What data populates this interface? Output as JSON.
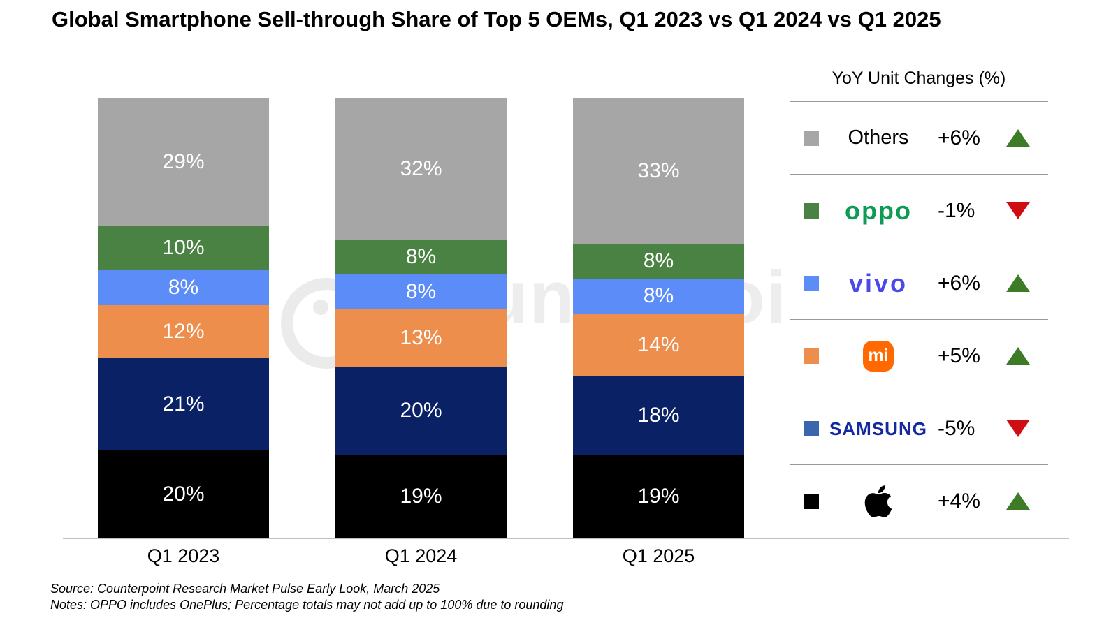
{
  "title": "Global Smartphone Sell-through Share of Top 5 OEMs, Q1 2023 vs Q1 2024 vs Q1 2025",
  "watermark": {
    "text": "Counterpoint"
  },
  "chart_data": {
    "type": "bar",
    "stacked": true,
    "title": "Global Smartphone Sell-through Share of Top 5 OEMs, Q1 2023 vs Q1 2024 vs Q1 2025",
    "categories": [
      "Q1 2023",
      "Q1 2024",
      "Q1 2025"
    ],
    "series": [
      {
        "name": "Apple",
        "color": "#000000",
        "values": [
          20,
          19,
          19
        ]
      },
      {
        "name": "Samsung",
        "color": "#0a2166",
        "values": [
          21,
          20,
          18
        ]
      },
      {
        "name": "Xiaomi",
        "color": "#ed8e4d",
        "values": [
          12,
          13,
          14
        ]
      },
      {
        "name": "vivo",
        "color": "#5b8cf7",
        "values": [
          8,
          8,
          8
        ]
      },
      {
        "name": "OPPO",
        "color": "#4a8243",
        "values": [
          10,
          8,
          8
        ]
      },
      {
        "name": "Others",
        "color": "#a6a6a6",
        "values": [
          29,
          32,
          33
        ]
      }
    ],
    "value_suffix": "%",
    "ylim": [
      0,
      100
    ],
    "grid": false,
    "legend_position": "right"
  },
  "legend": {
    "title": "YoY Unit Changes (%)",
    "up_color": "#3e7b27",
    "down_color": "#ce0e12",
    "rows": [
      {
        "brand": "Others",
        "logo": "text",
        "swatch": "#a6a6a6",
        "change": "+6%",
        "direction": "up"
      },
      {
        "brand": "OPPO",
        "logo": "oppo",
        "swatch": "#4a8243",
        "change": "-1%",
        "direction": "down"
      },
      {
        "brand": "vivo",
        "logo": "vivo",
        "swatch": "#5b8cf7",
        "change": "+6%",
        "direction": "up"
      },
      {
        "brand": "Xiaomi",
        "logo": "xiaomi",
        "swatch": "#ed8e4d",
        "change": "+5%",
        "direction": "up",
        "badge_text": "mi"
      },
      {
        "brand": "Samsung",
        "logo": "samsung",
        "swatch": "#3a66ae",
        "change": "-5%",
        "direction": "down"
      },
      {
        "brand": "Apple",
        "logo": "apple",
        "swatch": "#000000",
        "change": "+4%",
        "direction": "up"
      }
    ]
  },
  "brand_colors": {
    "oppo": "#0d9b56",
    "vivo": "#4b49eb",
    "xiaomi_badge": "#ff6900",
    "samsung": "#1428a0",
    "apple": "#000000"
  },
  "footer": {
    "source": "Source: Counterpoint Research Market Pulse Early Look, March 2025",
    "notes": "Notes: OPPO includes OnePlus; Percentage totals may not add up to 100% due to rounding"
  }
}
